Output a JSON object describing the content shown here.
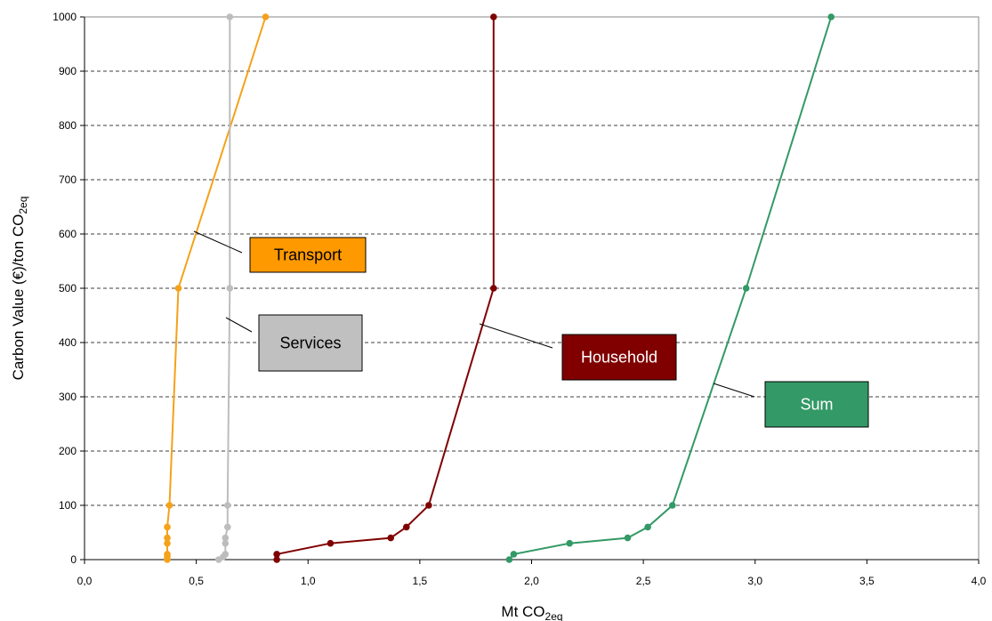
{
  "chart_data": {
    "type": "line",
    "xlabel": {
      "main": "Mt CO",
      "sub": "2eq"
    },
    "ylabel": {
      "main": "Carbon Value (€)/ton CO",
      "sub": "2eq"
    },
    "xlim": [
      0,
      4
    ],
    "ylim": [
      0,
      1000
    ],
    "x_ticks": [
      "0,0",
      "0,5",
      "1,0",
      "1,5",
      "2,0",
      "2,5",
      "3,0",
      "3,5",
      "4,0"
    ],
    "y_ticks": [
      "0",
      "100",
      "200",
      "300",
      "400",
      "500",
      "600",
      "700",
      "800",
      "900",
      "1000"
    ],
    "grid": "horizontal-dashed",
    "series": [
      {
        "name": "Transport",
        "color": "#f5a11a",
        "label_bg": "#ff9900",
        "label_fg": "#000000",
        "points": [
          [
            0.37,
            0
          ],
          [
            0.37,
            5
          ],
          [
            0.37,
            10
          ],
          [
            0.37,
            30
          ],
          [
            0.37,
            40
          ],
          [
            0.37,
            60
          ],
          [
            0.38,
            100
          ],
          [
            0.42,
            500
          ],
          [
            0.81,
            1000
          ]
        ]
      },
      {
        "name": "Services",
        "color": "#bdbdbd",
        "label_bg": "#c0c0c0",
        "label_fg": "#000000",
        "points": [
          [
            0.6,
            0
          ],
          [
            0.62,
            5
          ],
          [
            0.63,
            10
          ],
          [
            0.63,
            30
          ],
          [
            0.63,
            40
          ],
          [
            0.64,
            60
          ],
          [
            0.64,
            100
          ],
          [
            0.65,
            500
          ],
          [
            0.65,
            1000
          ]
        ]
      },
      {
        "name": "Household",
        "color": "#800000",
        "label_bg": "#800000",
        "label_fg": "#ffffff",
        "points": [
          [
            0.86,
            0
          ],
          [
            0.86,
            10
          ],
          [
            1.1,
            30
          ],
          [
            1.37,
            40
          ],
          [
            1.44,
            60
          ],
          [
            1.54,
            100
          ],
          [
            1.83,
            500
          ],
          [
            1.83,
            1000
          ]
        ]
      },
      {
        "name": "Sum",
        "color": "#339966",
        "label_bg": "#339966",
        "label_fg": "#ffffff",
        "points": [
          [
            1.9,
            0
          ],
          [
            1.92,
            10
          ],
          [
            2.17,
            30
          ],
          [
            2.43,
            40
          ],
          [
            2.52,
            60
          ],
          [
            2.63,
            100
          ],
          [
            2.96,
            500
          ],
          [
            3.34,
            1000
          ]
        ]
      }
    ]
  }
}
